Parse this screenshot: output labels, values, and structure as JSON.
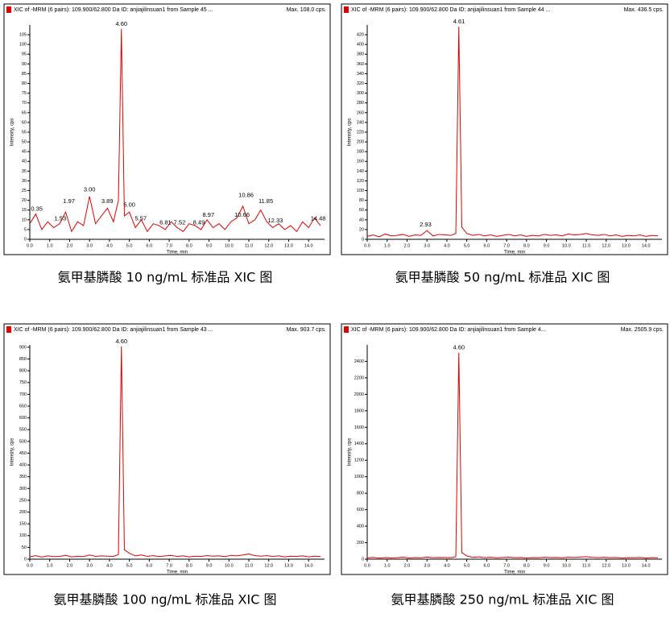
{
  "chart_data": [
    {
      "type": "line",
      "header": "XIC of -MRM (6 pairs): 109.900/62.800 Da ID: anjiajilinsuan1 from Sample 45 ...",
      "max_label": "Max. 108.0 cps.",
      "y_label": "Intensity, cps",
      "x_label": "Time, min",
      "caption": "氨甲基膦酸 10 ng/mL 标准品 XIC 图",
      "color": "#e00000",
      "x": [
        0.0,
        0.3,
        0.6,
        0.9,
        1.2,
        1.5,
        1.8,
        2.1,
        2.4,
        2.7,
        3.0,
        3.3,
        3.6,
        3.9,
        4.2,
        4.45,
        4.6,
        4.75,
        5.0,
        5.3,
        5.6,
        5.9,
        6.2,
        6.5,
        6.8,
        7.1,
        7.4,
        7.7,
        8.0,
        8.3,
        8.6,
        8.9,
        9.2,
        9.5,
        9.8,
        10.1,
        10.4,
        10.7,
        11.0,
        11.3,
        11.6,
        11.9,
        12.2,
        12.5,
        12.8,
        13.1,
        13.4,
        13.7,
        14.0,
        14.3,
        14.6
      ],
      "values": [
        8,
        13,
        5,
        9,
        6,
        8,
        14,
        4,
        9,
        7,
        22,
        8,
        12,
        16,
        9,
        20,
        108,
        12,
        14,
        6,
        10,
        4,
        8,
        7,
        5,
        9,
        6,
        4,
        8,
        7,
        5,
        10,
        6,
        8,
        5,
        9,
        11,
        17,
        8,
        10,
        15,
        9,
        6,
        8,
        5,
        7,
        4,
        9,
        6,
        11,
        7
      ],
      "xlim": [
        0,
        14.8
      ],
      "ylim": [
        0,
        110
      ],
      "xticks": [
        {
          "value": 0,
          "label": "0.0"
        },
        {
          "value": 1,
          "label": "1.0"
        },
        {
          "value": 2,
          "label": "2.0"
        },
        {
          "value": 3,
          "label": "3.0"
        },
        {
          "value": 4,
          "label": "4.0"
        },
        {
          "value": 5,
          "label": "5.0"
        },
        {
          "value": 6,
          "label": "6.0"
        },
        {
          "value": 7,
          "label": "7.0"
        },
        {
          "value": 8,
          "label": "8.0"
        },
        {
          "value": 9,
          "label": "9.0"
        },
        {
          "value": 10,
          "label": "10.0"
        },
        {
          "value": 11,
          "label": "11.0"
        },
        {
          "value": 12,
          "label": "12.0"
        },
        {
          "value": 13,
          "label": "13.0"
        },
        {
          "value": 14,
          "label": "14.0"
        }
      ],
      "yticks": [
        0,
        5,
        10,
        15,
        20,
        25,
        30,
        35,
        40,
        45,
        50,
        55,
        60,
        65,
        70,
        75,
        80,
        85,
        90,
        95,
        100,
        105
      ],
      "peak_labels": [
        {
          "x": 0.35,
          "y": 13,
          "label": "0.35"
        },
        {
          "x": 1.53,
          "y": 8,
          "label": "1.53"
        },
        {
          "x": 1.97,
          "y": 17,
          "label": "1.97"
        },
        {
          "x": 3.0,
          "y": 23,
          "label": "3.00"
        },
        {
          "x": 3.89,
          "y": 17,
          "label": "3.89"
        },
        {
          "x": 4.6,
          "y": 108,
          "label": "4.60"
        },
        {
          "x": 5.0,
          "y": 15,
          "label": "5.00"
        },
        {
          "x": 5.57,
          "y": 8,
          "label": "5.57"
        },
        {
          "x": 6.81,
          "y": 6,
          "label": "6.81"
        },
        {
          "x": 7.52,
          "y": 6,
          "label": "7.52"
        },
        {
          "x": 8.49,
          "y": 6,
          "label": "8.49"
        },
        {
          "x": 8.97,
          "y": 10,
          "label": "8.97"
        },
        {
          "x": 10.66,
          "y": 10,
          "label": "10.66"
        },
        {
          "x": 10.86,
          "y": 20,
          "label": "10.86"
        },
        {
          "x": 11.85,
          "y": 17,
          "label": "11.85"
        },
        {
          "x": 12.33,
          "y": 7,
          "label": "12.33"
        },
        {
          "x": 14.48,
          "y": 8,
          "label": "14.48"
        }
      ]
    },
    {
      "type": "line",
      "header": "XIC of -MRM (6 pairs): 109.900/62.800 Da ID: anjiajilinsuan1 from Sample 44 ...",
      "max_label": "Max. 436.5 cps.",
      "y_label": "Intensity, cps",
      "x_label": "Time, min",
      "caption": "氨甲基膦酸 50 ng/mL 标准品 XIC 图",
      "color": "#e00000",
      "x": [
        0.0,
        0.3,
        0.6,
        0.9,
        1.2,
        1.5,
        1.8,
        2.1,
        2.4,
        2.7,
        3.0,
        3.3,
        3.6,
        3.9,
        4.2,
        4.45,
        4.6,
        4.75,
        5.0,
        5.3,
        5.6,
        5.9,
        6.2,
        6.5,
        6.8,
        7.1,
        7.4,
        7.7,
        8.0,
        8.3,
        8.6,
        8.9,
        9.2,
        9.5,
        9.8,
        10.1,
        10.4,
        10.7,
        11.0,
        11.3,
        11.6,
        11.9,
        12.2,
        12.5,
        12.8,
        13.1,
        13.4,
        13.7,
        14.0,
        14.3,
        14.6
      ],
      "values": [
        6,
        9,
        5,
        11,
        7,
        8,
        10,
        6,
        9,
        8,
        18,
        7,
        10,
        9,
        8,
        12,
        436.5,
        25,
        12,
        8,
        10,
        7,
        9,
        6,
        8,
        10,
        7,
        9,
        6,
        8,
        7,
        10,
        8,
        9,
        7,
        11,
        9,
        10,
        12,
        9,
        8,
        10,
        7,
        9,
        6,
        8,
        7,
        9,
        6,
        8,
        7
      ],
      "xlim": [
        0,
        14.8
      ],
      "ylim": [
        0,
        440
      ],
      "xticks": [
        {
          "value": 0,
          "label": "0.0"
        },
        {
          "value": 1,
          "label": "1.0"
        },
        {
          "value": 2,
          "label": "2.0"
        },
        {
          "value": 3,
          "label": "3.0"
        },
        {
          "value": 4,
          "label": "4.0"
        },
        {
          "value": 5,
          "label": "5.0"
        },
        {
          "value": 6,
          "label": "6.0"
        },
        {
          "value": 7,
          "label": "7.0"
        },
        {
          "value": 8,
          "label": "8.0"
        },
        {
          "value": 9,
          "label": "9.0"
        },
        {
          "value": 10,
          "label": "10.0"
        },
        {
          "value": 11,
          "label": "11.0"
        },
        {
          "value": 12,
          "label": "12.0"
        },
        {
          "value": 13,
          "label": "13.0"
        },
        {
          "value": 14,
          "label": "14.0"
        }
      ],
      "yticks": [
        0,
        20,
        40,
        60,
        80,
        100,
        120,
        140,
        160,
        180,
        200,
        220,
        240,
        260,
        280,
        300,
        320,
        340,
        360,
        380,
        400,
        420
      ],
      "peak_labels": [
        {
          "x": 2.93,
          "y": 20,
          "label": "2.93"
        },
        {
          "x": 4.61,
          "y": 436.5,
          "label": "4.61"
        }
      ]
    },
    {
      "type": "line",
      "header": "XIC of -MRM (6 pairs): 109.900/62.800 Da ID: anjiajilinsuan1 from Sample 43 ...",
      "max_label": "Max. 903.7 cps.",
      "y_label": "Intensity, cps",
      "x_label": "Time, min",
      "caption": "氨甲基膦酸 100 ng/mL 标准品 XIC 图",
      "color": "#e00000",
      "x": [
        0.0,
        0.3,
        0.6,
        0.9,
        1.2,
        1.5,
        1.8,
        2.1,
        2.4,
        2.7,
        3.0,
        3.3,
        3.6,
        3.9,
        4.2,
        4.45,
        4.6,
        4.75,
        5.0,
        5.3,
        5.6,
        5.9,
        6.2,
        6.5,
        6.8,
        7.1,
        7.4,
        7.7,
        8.0,
        8.3,
        8.6,
        8.9,
        9.2,
        9.5,
        9.8,
        10.1,
        10.4,
        10.7,
        11.0,
        11.3,
        11.6,
        11.9,
        12.2,
        12.5,
        12.8,
        13.1,
        13.4,
        13.7,
        14.0,
        14.3,
        14.6
      ],
      "values": [
        10,
        15,
        9,
        14,
        11,
        12,
        16,
        10,
        13,
        11,
        18,
        12,
        14,
        13,
        12,
        20,
        903.7,
        40,
        25,
        14,
        18,
        12,
        15,
        11,
        14,
        16,
        12,
        14,
        10,
        13,
        12,
        15,
        13,
        14,
        11,
        16,
        14,
        18,
        22,
        15,
        13,
        15,
        12,
        14,
        10,
        13,
        12,
        14,
        10,
        13,
        11
      ],
      "xlim": [
        0,
        14.8
      ],
      "ylim": [
        0,
        910
      ],
      "xticks": [
        {
          "value": 0,
          "label": "0.0"
        },
        {
          "value": 1,
          "label": "1.0"
        },
        {
          "value": 2,
          "label": "2.0"
        },
        {
          "value": 3,
          "label": "3.0"
        },
        {
          "value": 4,
          "label": "4.0"
        },
        {
          "value": 5,
          "label": "5.0"
        },
        {
          "value": 6,
          "label": "6.0"
        },
        {
          "value": 7,
          "label": "7.0"
        },
        {
          "value": 8,
          "label": "8.0"
        },
        {
          "value": 9,
          "label": "9.0"
        },
        {
          "value": 10,
          "label": "10.0"
        },
        {
          "value": 11,
          "label": "11.0"
        },
        {
          "value": 12,
          "label": "12.0"
        },
        {
          "value": 13,
          "label": "13.0"
        },
        {
          "value": 14,
          "label": "14.0"
        }
      ],
      "yticks": [
        0,
        50,
        100,
        150,
        200,
        250,
        300,
        350,
        400,
        450,
        500,
        550,
        600,
        650,
        700,
        750,
        800,
        850,
        900
      ],
      "peak_labels": [
        {
          "x": 4.6,
          "y": 903.7,
          "label": "4.60"
        }
      ]
    },
    {
      "type": "line",
      "header": "XIC of -MRM (6 pairs): 109.900/62.800 Da ID: anjiajilinsuan1 from Sample 4...",
      "max_label": "Max. 2505.9 cps.",
      "y_label": "Intensity, cps",
      "x_label": "Time, min",
      "caption": "氨甲基膦酸 250 ng/mL 标准品 XIC 图",
      "color": "#e00000",
      "x": [
        0.0,
        0.3,
        0.6,
        0.9,
        1.2,
        1.5,
        1.8,
        2.1,
        2.4,
        2.7,
        3.0,
        3.3,
        3.6,
        3.9,
        4.2,
        4.45,
        4.6,
        4.75,
        5.0,
        5.3,
        5.6,
        5.9,
        6.2,
        6.5,
        6.8,
        7.1,
        7.4,
        7.7,
        8.0,
        8.3,
        8.6,
        8.9,
        9.2,
        9.5,
        9.8,
        10.1,
        10.4,
        10.7,
        11.0,
        11.3,
        11.6,
        11.9,
        12.2,
        12.5,
        12.8,
        13.1,
        13.4,
        13.7,
        14.0,
        14.3,
        14.6
      ],
      "values": [
        15,
        22,
        14,
        20,
        16,
        18,
        24,
        15,
        19,
        17,
        25,
        18,
        21,
        20,
        18,
        30,
        2505.9,
        80,
        40,
        22,
        28,
        18,
        23,
        17,
        21,
        24,
        18,
        21,
        15,
        20,
        18,
        23,
        20,
        21,
        17,
        24,
        21,
        26,
        30,
        22,
        20,
        23,
        18,
        21,
        15,
        20,
        18,
        21,
        15,
        20,
        17
      ],
      "xlim": [
        0,
        14.8
      ],
      "ylim": [
        0,
        2600
      ],
      "xticks": [
        {
          "value": 0,
          "label": "0.0"
        },
        {
          "value": 1,
          "label": "1.0"
        },
        {
          "value": 2,
          "label": "2.0"
        },
        {
          "value": 3,
          "label": "3.0"
        },
        {
          "value": 4,
          "label": "4.0"
        },
        {
          "value": 5,
          "label": "5.0"
        },
        {
          "value": 6,
          "label": "6.0"
        },
        {
          "value": 7,
          "label": "7.0"
        },
        {
          "value": 8,
          "label": "8.0"
        },
        {
          "value": 9,
          "label": "9.0"
        },
        {
          "value": 10,
          "label": "10.0"
        },
        {
          "value": 11,
          "label": "11.0"
        },
        {
          "value": 12,
          "label": "12.0"
        },
        {
          "value": 13,
          "label": "13.0"
        },
        {
          "value": 14,
          "label": "14.0"
        }
      ],
      "yticks": [
        0,
        200,
        400,
        600,
        800,
        1000,
        1200,
        1400,
        1600,
        1800,
        2000,
        2200,
        2400
      ],
      "peak_labels": [
        {
          "x": 4.6,
          "y": 2505.9,
          "label": "4.60"
        }
      ]
    }
  ]
}
